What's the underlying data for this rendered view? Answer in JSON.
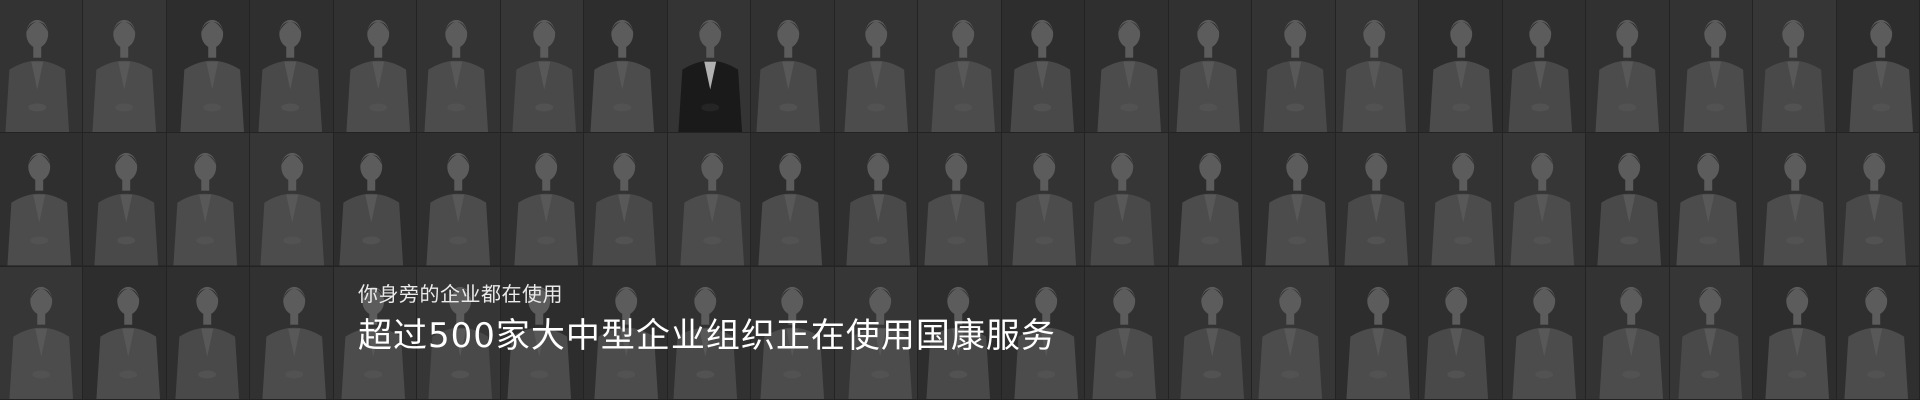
{
  "banner": {
    "subtitle": "你身旁的企业都在使用",
    "headline": "超过500家大中型企业组织正在使用国康服务"
  },
  "colors": {
    "background": "#2b2b2b",
    "text": "#ffffff",
    "tile_bg": "#3a3a3a",
    "coat": "#5a5a5a",
    "face": "#6e6e6e",
    "hair": "#2e2e2e",
    "suit": "#1c1c1c"
  },
  "photo_wall": {
    "columns": 23,
    "rows": 3,
    "dark_suit_tiles": [
      8
    ]
  }
}
